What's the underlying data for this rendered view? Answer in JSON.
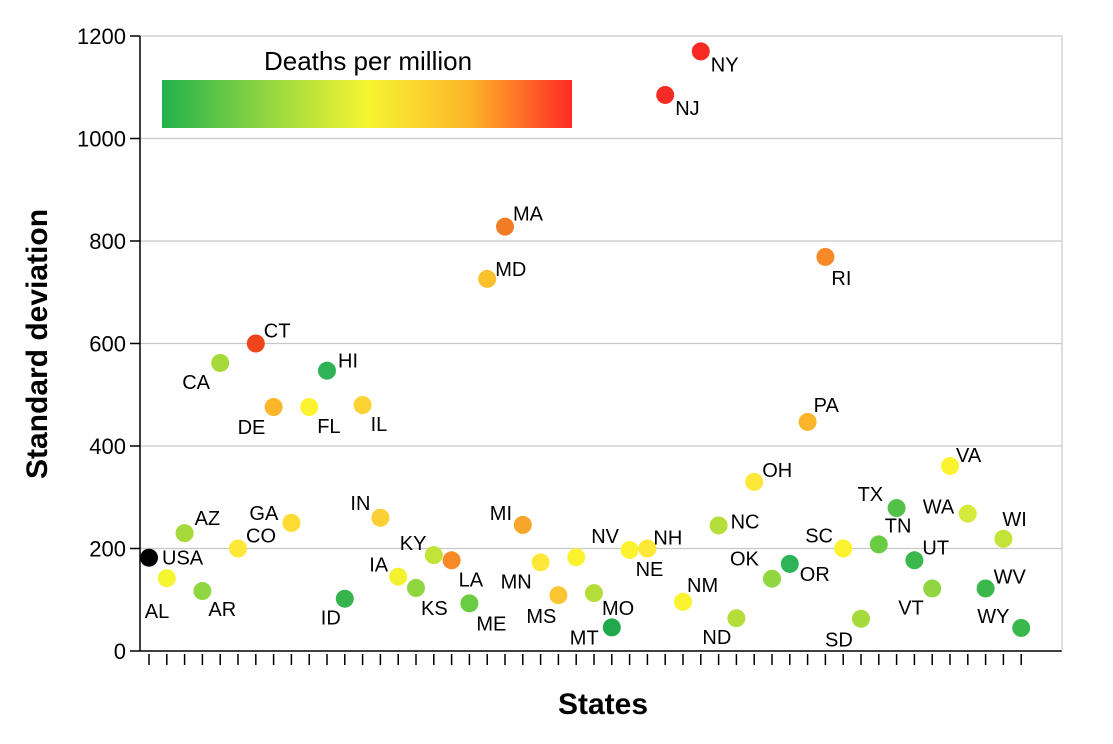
{
  "chart_data": {
    "type": "scatter",
    "title": "",
    "xlabel": "States",
    "ylabel": "Standard deviation",
    "ylim": [
      0,
      1200
    ],
    "yticks": [
      0,
      200,
      400,
      600,
      800,
      1000,
      1200
    ],
    "grid": "horizontal",
    "legend": {
      "title": "Deaths per million",
      "placement": "top-left",
      "gradient_colors": [
        "#22b14c",
        "#8fd641",
        "#f5f531",
        "#fdb529",
        "#ff2a25"
      ]
    },
    "points": [
      {
        "label": "USA",
        "value": 182,
        "color": "#000000"
      },
      {
        "label": "AL",
        "value": 142,
        "color": "#f5f531"
      },
      {
        "label": "AZ",
        "value": 230,
        "color": "#a5da3a"
      },
      {
        "label": "AR",
        "value": 117,
        "color": "#8fd641"
      },
      {
        "label": "CA",
        "value": 562,
        "color": "#a5da3a"
      },
      {
        "label": "CO",
        "value": 200,
        "color": "#fde83a"
      },
      {
        "label": "CT",
        "value": 600,
        "color": "#f0451b"
      },
      {
        "label": "DE",
        "value": 476,
        "color": "#fbb52a"
      },
      {
        "label": "GA",
        "value": 250,
        "color": "#fddb32"
      },
      {
        "label": "FL",
        "value": 476,
        "color": "#fbf330"
      },
      {
        "label": "HI",
        "value": 547,
        "color": "#2eb456"
      },
      {
        "label": "ID",
        "value": 102,
        "color": "#35b34d"
      },
      {
        "label": "IL",
        "value": 480,
        "color": "#fcd332"
      },
      {
        "label": "IN",
        "value": 260,
        "color": "#fdcf37"
      },
      {
        "label": "IA",
        "value": 145,
        "color": "#f2f231"
      },
      {
        "label": "KS",
        "value": 123,
        "color": "#8fd641"
      },
      {
        "label": "KY",
        "value": 187,
        "color": "#c2e338"
      },
      {
        "label": "LA",
        "value": 177,
        "color": "#f78926"
      },
      {
        "label": "ME",
        "value": 93,
        "color": "#6acc43"
      },
      {
        "label": "MD",
        "value": 726,
        "color": "#fbc12d"
      },
      {
        "label": "MA",
        "value": 828,
        "color": "#f27c26"
      },
      {
        "label": "MI",
        "value": 246,
        "color": "#f8a52b"
      },
      {
        "label": "MN",
        "value": 173,
        "color": "#fde83a"
      },
      {
        "label": "MS",
        "value": 109,
        "color": "#fcc533"
      },
      {
        "label": "NV",
        "value": 183,
        "color": "#fbf330"
      },
      {
        "label": "MO",
        "value": 113,
        "color": "#b5de3a"
      },
      {
        "label": "MT",
        "value": 46,
        "color": "#20a84c"
      },
      {
        "label": "NE",
        "value": 197,
        "color": "#fbf330"
      },
      {
        "label": "NH",
        "value": 200,
        "color": "#fde83a"
      },
      {
        "label": "NJ",
        "value": 1085,
        "color": "#f52b25"
      },
      {
        "label": "NM",
        "value": 96,
        "color": "#fbf330"
      },
      {
        "label": "NY",
        "value": 1170,
        "color": "#f72a25"
      },
      {
        "label": "NC",
        "value": 245,
        "color": "#b5de3a"
      },
      {
        "label": "ND",
        "value": 64,
        "color": "#b5de3a"
      },
      {
        "label": "OH",
        "value": 330,
        "color": "#fde83a"
      },
      {
        "label": "OK",
        "value": 141,
        "color": "#8fd641"
      },
      {
        "label": "OR",
        "value": 170,
        "color": "#2eb456"
      },
      {
        "label": "PA",
        "value": 447,
        "color": "#fbb52a"
      },
      {
        "label": "RI",
        "value": 769,
        "color": "#f78926"
      },
      {
        "label": "SC",
        "value": 200,
        "color": "#fbf330"
      },
      {
        "label": "SD",
        "value": 63,
        "color": "#a5da3a"
      },
      {
        "label": "TN",
        "value": 208,
        "color": "#6acc43"
      },
      {
        "label": "TX",
        "value": 279,
        "color": "#51c14a"
      },
      {
        "label": "UT",
        "value": 177,
        "color": "#3bb84b"
      },
      {
        "label": "VT",
        "value": 122,
        "color": "#8fd641"
      },
      {
        "label": "VA",
        "value": 361,
        "color": "#fbf330"
      },
      {
        "label": "WA",
        "value": 268,
        "color": "#d5ea3a"
      },
      {
        "label": "WV",
        "value": 122,
        "color": "#3bb84b"
      },
      {
        "label": "WI",
        "value": 219,
        "color": "#c2e338"
      },
      {
        "label": "WY",
        "value": 45,
        "color": "#3bb84b"
      }
    ]
  }
}
